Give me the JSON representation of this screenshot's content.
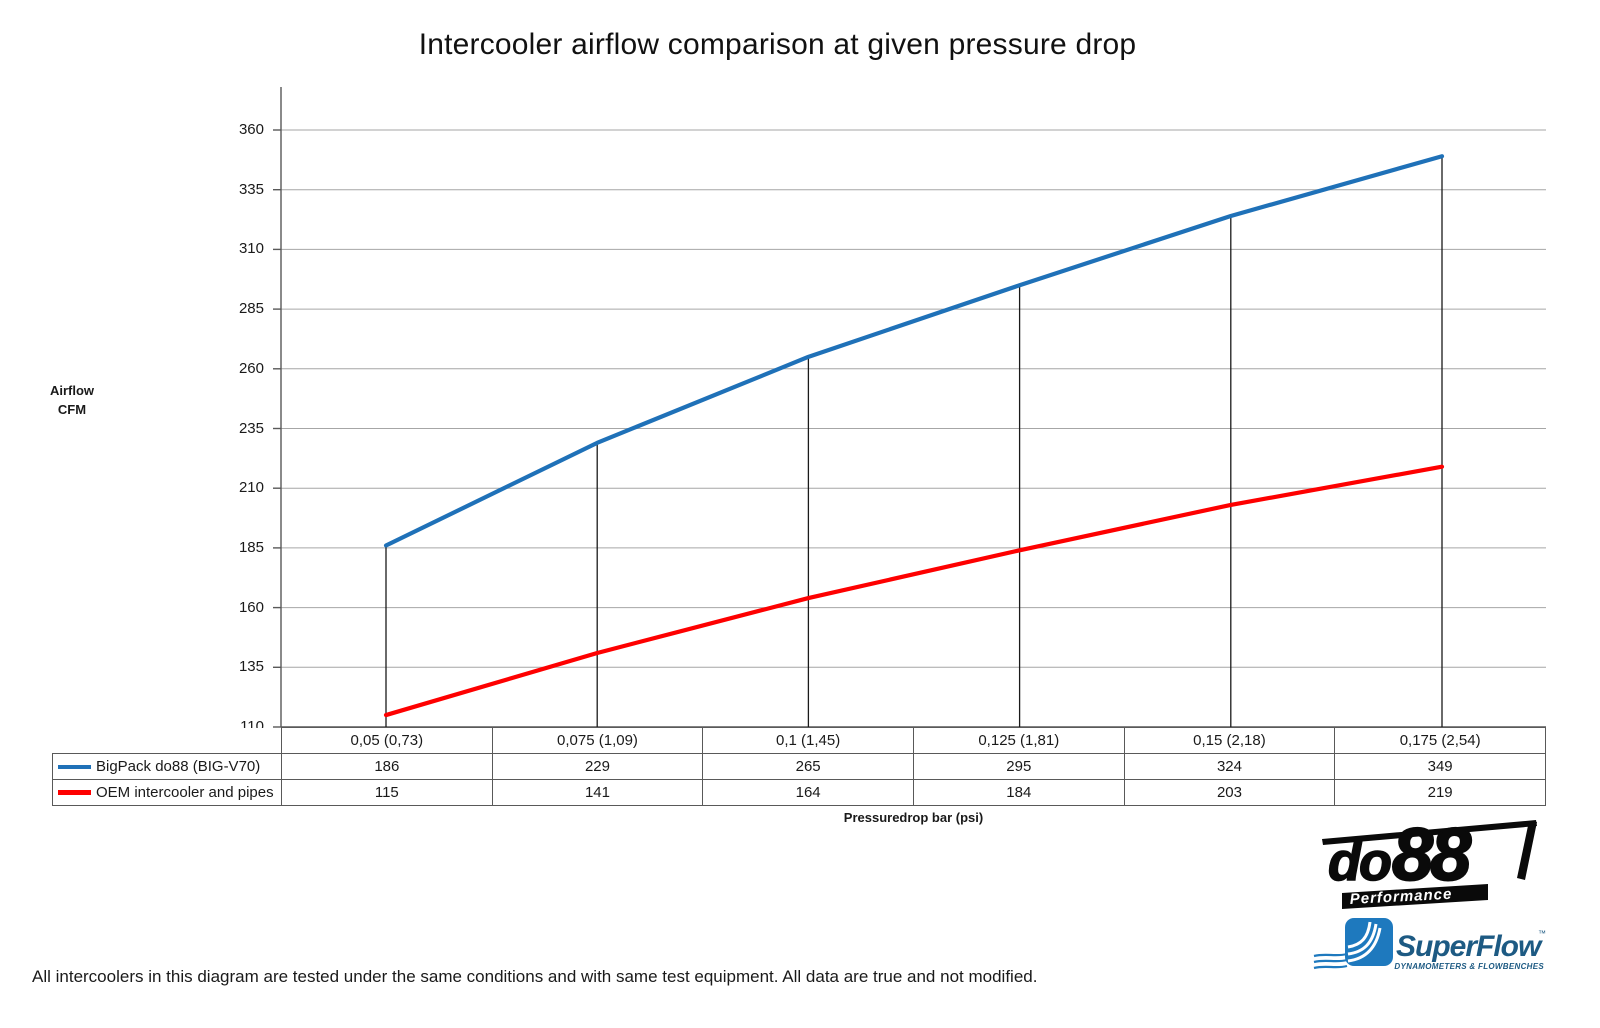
{
  "chart_data": {
    "type": "line",
    "title": "Intercooler airflow comparison at given pressure drop",
    "categories": [
      "0,05 (0,73)",
      "0,075 (1,09)",
      "0,1 (1,45)",
      "0,125 (1,81)",
      "0,15 (2,18)",
      "0,175 (2,54)"
    ],
    "series": [
      {
        "name": "BigPack do88 (BIG-V70)",
        "color": "#1F71B8",
        "values": [
          186,
          229,
          265,
          295,
          324,
          349
        ]
      },
      {
        "name": "OEM intercooler and pipes",
        "color": "#FE0000",
        "values": [
          115,
          141,
          164,
          184,
          203,
          219
        ]
      }
    ],
    "xlabel": "Pressuredrop bar (psi)",
    "ylabel": "Airflow CFM",
    "ylabel_line1": "Airflow",
    "ylabel_line2": "CFM",
    "ylim": [
      110,
      360
    ],
    "ytick_step": 25,
    "grid": "horizontal",
    "legend_position": "table-left",
    "drop_lines": "vertical black lines from first series points to x-axis"
  },
  "colors": {
    "grid": "#A6A6A6",
    "axis": "#595959",
    "drop_line": "#1a1a1a",
    "blue": "#1F71B8",
    "red": "#FE0000"
  },
  "footnote": "All intercoolers in this diagram are tested under the same conditions and with same test equipment. All data are true and not modified.",
  "logos": {
    "do88": {
      "prefix": "do",
      "number": "88",
      "tagline": "Performance"
    },
    "superflow": {
      "name": "SuperFlow",
      "mark": "™",
      "tagline": "DYNAMOMETERS & FLOWBENCHES"
    }
  }
}
